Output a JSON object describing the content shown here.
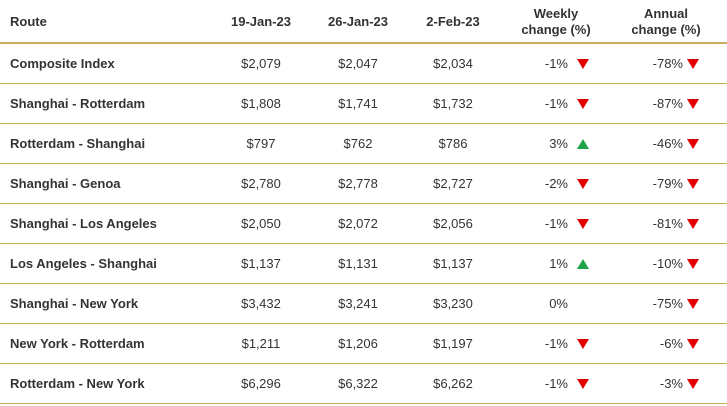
{
  "table": {
    "header": [
      "Route",
      "19-Jan-23",
      "26-Jan-23",
      "2-Feb-23",
      "Weekly change (%)",
      "Annual change (%)"
    ],
    "rows": [
      [
        "Composite Index",
        "$2,079",
        "$2,047",
        "$2,034",
        "-1%",
        "-78%"
      ],
      [
        "Shanghai - Rotterdam",
        "$1,808",
        "$1,741",
        "$1,732",
        "-1%",
        "-87%"
      ],
      [
        "Rotterdam - Shanghai",
        "$797",
        "$762",
        "$786",
        "3%",
        "-46%"
      ],
      [
        "Shanghai - Genoa",
        "$2,780",
        "$2,778",
        "$2,727",
        "-2%",
        "-79%"
      ],
      [
        "Shanghai - Los Angeles",
        "$2,050",
        "$2,072",
        "$2,056",
        "-1%",
        "-81%"
      ],
      [
        "Los Angeles - Shanghai",
        "$1,137",
        "$1,131",
        "$1,137",
        "1%",
        "-10%"
      ],
      [
        "Shanghai - New York",
        "$3,432",
        "$3,241",
        "$3,230",
        "0%",
        "-75%"
      ],
      [
        "New York - Rotterdam",
        "$1,211",
        "$1,206",
        "$1,197",
        "-1%",
        "-6%"
      ],
      [
        "Rotterdam - New York",
        "$6,296",
        "$6,322",
        "$6,262",
        "-1%",
        "-3%"
      ]
    ]
  }
}
